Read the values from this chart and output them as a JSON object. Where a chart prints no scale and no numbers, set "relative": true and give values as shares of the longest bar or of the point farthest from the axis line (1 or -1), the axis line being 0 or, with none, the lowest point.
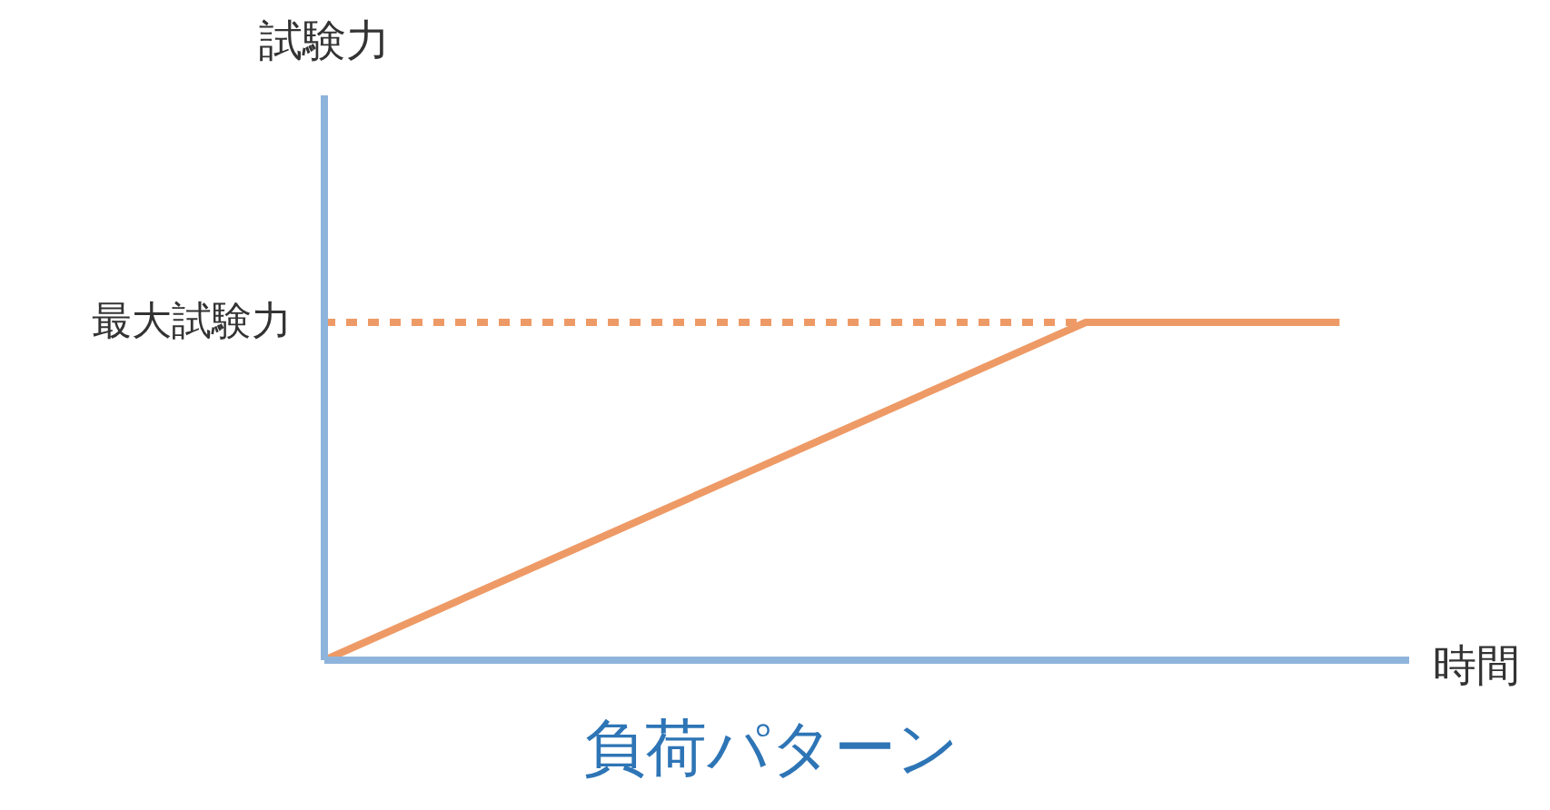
{
  "chart_data": {
    "type": "line",
    "title": "負荷パターン",
    "xlabel": "時間",
    "annotations": [
      "試験力"
    ],
    "relative": true,
    "categories": [
      null,
      null,
      null,
      null,
      null
    ],
    "series": [
      {
        "color": "#ee9a66",
        "values": [
          0,
          0.3333,
          0.6667,
          1,
          1
        ]
      }
    ],
    "ref_lines": [
      {
        "axis": "y",
        "value": 1,
        "label": "最大試験力",
        "color": "#ee9a66",
        "line_style": "dashed"
      }
    ],
    "grid": false,
    "marker": "none",
    "line_style": "solid"
  }
}
